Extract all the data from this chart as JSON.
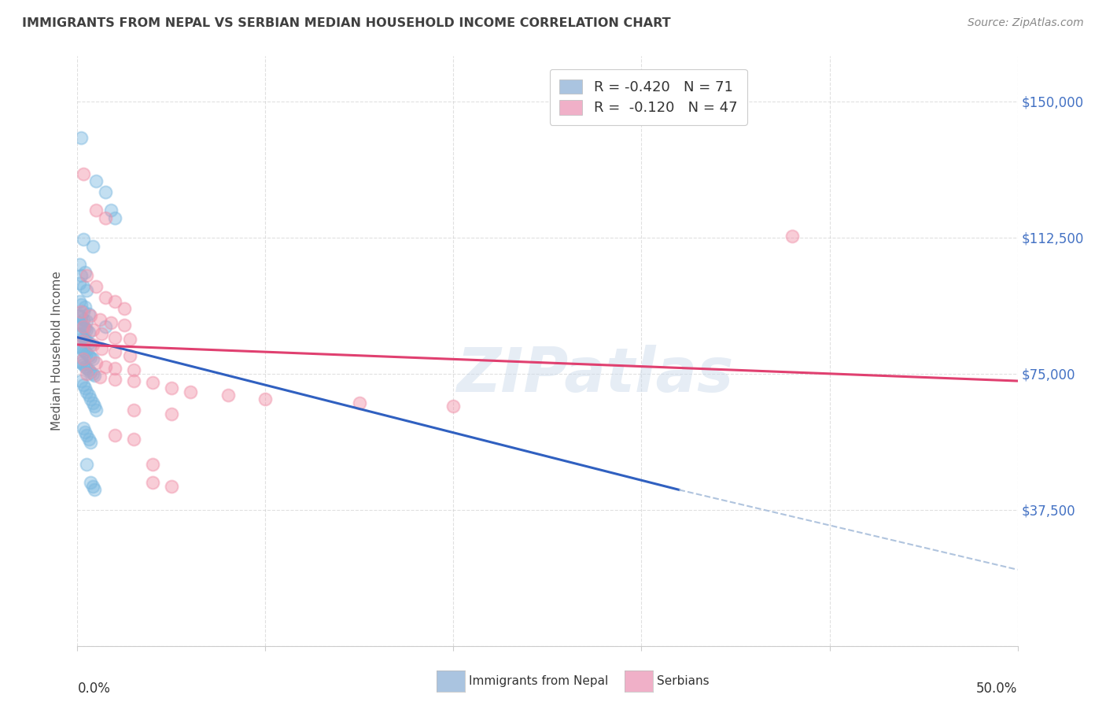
{
  "title": "IMMIGRANTS FROM NEPAL VS SERBIAN MEDIAN HOUSEHOLD INCOME CORRELATION CHART",
  "source": "Source: ZipAtlas.com",
  "ylabel": "Median Household Income",
  "yticks": [
    0,
    37500,
    75000,
    112500,
    150000
  ],
  "ytick_labels": [
    "",
    "$37,500",
    "$75,000",
    "$112,500",
    "$150,000"
  ],
  "xlim": [
    0.0,
    0.5
  ],
  "ylim": [
    0,
    162500
  ],
  "legend_line1": "R = -0.420   N = 71",
  "legend_line2": "R =  -0.120   N = 47",
  "legend_color1": "#aac4e0",
  "legend_color2": "#f0b0c8",
  "watermark": "ZIPatlas",
  "nepal_color": "#7bb8e0",
  "serbian_color": "#f090a8",
  "nepal_scatter": [
    [
      0.002,
      140000
    ],
    [
      0.01,
      128000
    ],
    [
      0.015,
      125000
    ],
    [
      0.018,
      120000
    ],
    [
      0.02,
      118000
    ],
    [
      0.003,
      112000
    ],
    [
      0.008,
      110000
    ],
    [
      0.001,
      105000
    ],
    [
      0.004,
      103000
    ],
    [
      0.002,
      102000
    ],
    [
      0.001,
      100000
    ],
    [
      0.003,
      99000
    ],
    [
      0.005,
      98000
    ],
    [
      0.001,
      95000
    ],
    [
      0.002,
      94000
    ],
    [
      0.004,
      93500
    ],
    [
      0.003,
      92000
    ],
    [
      0.006,
      91500
    ],
    [
      0.001,
      91000
    ],
    [
      0.002,
      90500
    ],
    [
      0.003,
      90000
    ],
    [
      0.005,
      89500
    ],
    [
      0.001,
      89000
    ],
    [
      0.002,
      88500
    ],
    [
      0.003,
      88000
    ],
    [
      0.004,
      87500
    ],
    [
      0.005,
      87000
    ],
    [
      0.006,
      86500
    ],
    [
      0.001,
      86000
    ],
    [
      0.002,
      85500
    ],
    [
      0.003,
      85000
    ],
    [
      0.004,
      84500
    ],
    [
      0.005,
      84000
    ],
    [
      0.006,
      83500
    ],
    [
      0.007,
      83000
    ],
    [
      0.001,
      82500
    ],
    [
      0.002,
      82000
    ],
    [
      0.003,
      81500
    ],
    [
      0.004,
      81000
    ],
    [
      0.005,
      80500
    ],
    [
      0.006,
      80000
    ],
    [
      0.007,
      79500
    ],
    [
      0.008,
      79000
    ],
    [
      0.001,
      78500
    ],
    [
      0.002,
      78000
    ],
    [
      0.003,
      77500
    ],
    [
      0.004,
      77000
    ],
    [
      0.005,
      76500
    ],
    [
      0.006,
      76000
    ],
    [
      0.007,
      75500
    ],
    [
      0.008,
      75000
    ],
    [
      0.009,
      74500
    ],
    [
      0.002,
      73000
    ],
    [
      0.003,
      72000
    ],
    [
      0.004,
      71000
    ],
    [
      0.005,
      70000
    ],
    [
      0.006,
      69000
    ],
    [
      0.007,
      68000
    ],
    [
      0.008,
      67000
    ],
    [
      0.009,
      66000
    ],
    [
      0.01,
      65000
    ],
    [
      0.015,
      88000
    ],
    [
      0.003,
      60000
    ],
    [
      0.004,
      59000
    ],
    [
      0.005,
      58000
    ],
    [
      0.006,
      57000
    ],
    [
      0.007,
      56000
    ],
    [
      0.005,
      50000
    ],
    [
      0.007,
      45000
    ],
    [
      0.008,
      44000
    ],
    [
      0.009,
      43000
    ]
  ],
  "serbian_scatter": [
    [
      0.003,
      130000
    ],
    [
      0.01,
      120000
    ],
    [
      0.015,
      118000
    ],
    [
      0.005,
      102000
    ],
    [
      0.01,
      99000
    ],
    [
      0.015,
      96000
    ],
    [
      0.02,
      95000
    ],
    [
      0.025,
      93000
    ],
    [
      0.002,
      92000
    ],
    [
      0.007,
      91000
    ],
    [
      0.012,
      90000
    ],
    [
      0.018,
      89000
    ],
    [
      0.025,
      88500
    ],
    [
      0.003,
      88000
    ],
    [
      0.008,
      87000
    ],
    [
      0.013,
      86000
    ],
    [
      0.02,
      85000
    ],
    [
      0.028,
      84500
    ],
    [
      0.003,
      84000
    ],
    [
      0.008,
      83000
    ],
    [
      0.013,
      82000
    ],
    [
      0.02,
      81000
    ],
    [
      0.028,
      80000
    ],
    [
      0.003,
      79000
    ],
    [
      0.01,
      78000
    ],
    [
      0.015,
      77000
    ],
    [
      0.02,
      76500
    ],
    [
      0.03,
      76000
    ],
    [
      0.005,
      75000
    ],
    [
      0.012,
      74000
    ],
    [
      0.02,
      73500
    ],
    [
      0.03,
      73000
    ],
    [
      0.04,
      72500
    ],
    [
      0.05,
      71000
    ],
    [
      0.06,
      70000
    ],
    [
      0.08,
      69000
    ],
    [
      0.1,
      68000
    ],
    [
      0.15,
      67000
    ],
    [
      0.2,
      66000
    ],
    [
      0.03,
      65000
    ],
    [
      0.05,
      64000
    ],
    [
      0.02,
      58000
    ],
    [
      0.03,
      57000
    ],
    [
      0.04,
      50000
    ],
    [
      0.38,
      113000
    ],
    [
      0.04,
      45000
    ],
    [
      0.05,
      44000
    ]
  ],
  "nepal_line_solid": {
    "x0": 0.0,
    "y0": 85000,
    "x1": 0.32,
    "y1": 43000
  },
  "nepal_line_dash": {
    "x0": 0.32,
    "y0": 43000,
    "x1": 0.5,
    "y1": 21000
  },
  "serbian_line": {
    "x0": 0.0,
    "y0": 83000,
    "x1": 0.5,
    "y1": 73000
  },
  "bg_color": "#ffffff",
  "grid_color": "#cccccc",
  "title_color": "#404040",
  "right_ytick_color": "#4472c4",
  "nepal_line_color": "#3060c0",
  "serbian_line_color": "#e04070"
}
